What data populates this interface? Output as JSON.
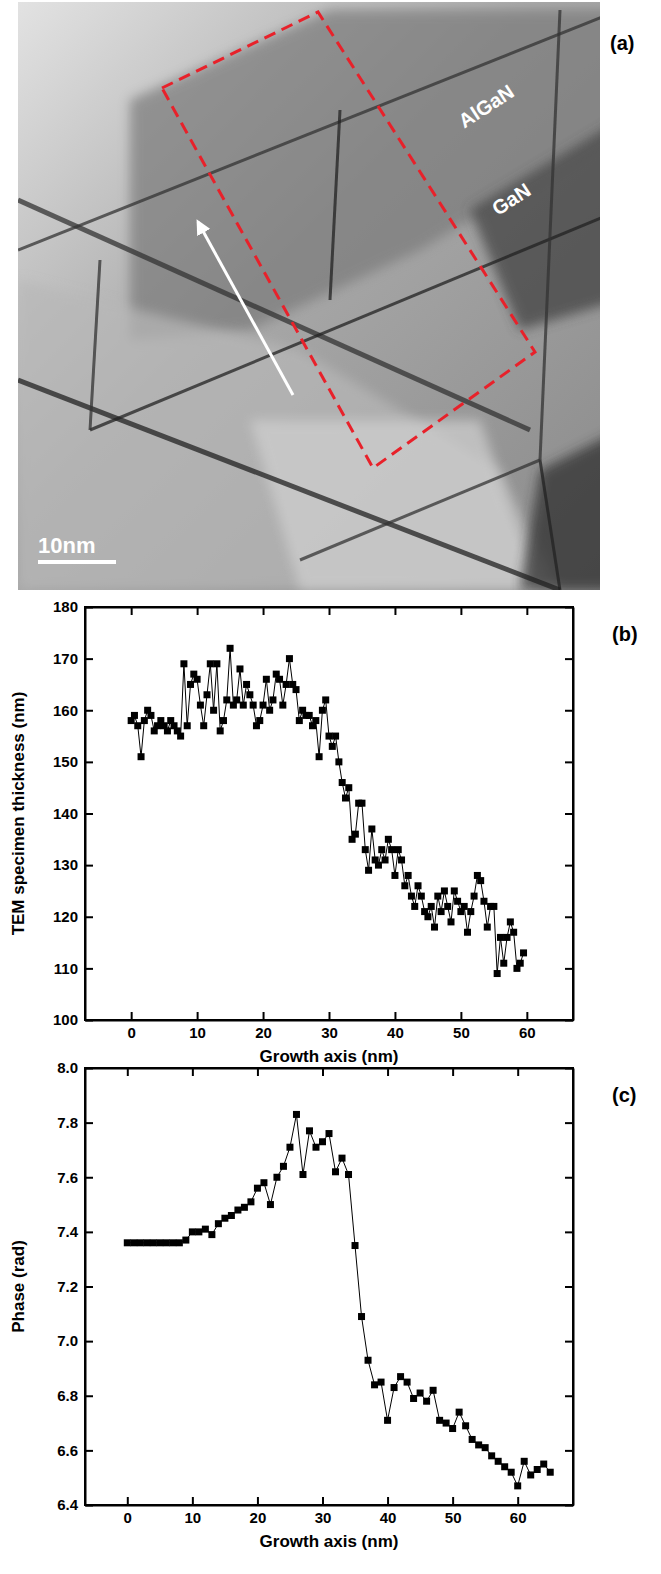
{
  "image": {
    "label": "(a)",
    "labels": [
      "AlGaN",
      "GaN"
    ],
    "scale_bar": "10nm"
  },
  "chart_data": [
    {
      "type": "line",
      "marker": "square",
      "line_style": "solid",
      "color": "#000000",
      "annotations": [
        "(b)"
      ],
      "x_label": "Growth axis (nm)",
      "y_label": "TEM specimen thickness (nm)",
      "xlim": [
        -7,
        67
      ],
      "ylim": [
        100,
        180
      ],
      "xticks": [
        0,
        10,
        20,
        30,
        40,
        50,
        60
      ],
      "yticks": [
        100,
        110,
        120,
        130,
        140,
        150,
        160,
        170,
        180
      ],
      "x": [
        0,
        0.5,
        1,
        1.5,
        2,
        2.5,
        3,
        3.5,
        4,
        4.5,
        5,
        5.5,
        6,
        6.5,
        7,
        7.5,
        8,
        8.5,
        9,
        9.5,
        10,
        10.5,
        11,
        11.5,
        12,
        12.5,
        13,
        13.5,
        14,
        14.5,
        15,
        15.5,
        16,
        16.5,
        17,
        17.5,
        18,
        18.5,
        19,
        19.5,
        20,
        20.5,
        21,
        21.5,
        22,
        22.5,
        23,
        23.5,
        24,
        24.5,
        25,
        25.5,
        26,
        26.5,
        27,
        27.5,
        28,
        28.5,
        29,
        29.5,
        30,
        30.5,
        31,
        31.5,
        32,
        32.5,
        33,
        33.5,
        34,
        34.5,
        35,
        35.5,
        36,
        36.5,
        37,
        37.5,
        38,
        38.5,
        39,
        39.5,
        40,
        40.5,
        41,
        41.5,
        42,
        42.5,
        43,
        43.5,
        44,
        44.5,
        45,
        45.5,
        46,
        46.5,
        47,
        47.5,
        48,
        48.5,
        49,
        49.5,
        50,
        50.5,
        51,
        51.5,
        52,
        52.5,
        53,
        53.5,
        54,
        54.5,
        55,
        55.5,
        56,
        56.5,
        57,
        57.5,
        58,
        58.5,
        59,
        59.5
      ],
      "values": [
        158,
        159,
        157,
        151,
        158,
        160,
        159,
        156,
        157,
        158,
        157,
        156,
        158,
        157,
        156,
        155,
        169,
        157,
        165,
        167,
        166,
        161,
        157,
        163,
        169,
        160,
        169,
        156,
        158,
        162,
        172,
        161,
        162,
        168,
        161,
        165,
        163,
        161,
        157,
        158,
        161,
        166,
        160,
        162,
        167,
        166,
        161,
        165,
        170,
        165,
        164,
        158,
        160,
        159,
        159,
        157,
        158,
        151,
        160,
        162,
        155,
        153,
        155,
        150,
        146,
        143,
        145,
        135,
        136,
        142,
        142,
        133,
        129,
        137,
        131,
        130,
        133,
        131,
        135,
        133,
        128,
        133,
        131,
        126,
        128,
        124,
        122,
        126,
        124,
        121,
        120,
        122,
        118,
        124,
        121,
        125,
        122,
        119,
        125,
        123,
        121,
        122,
        117,
        121,
        124,
        128,
        127,
        123,
        118,
        122,
        122,
        109,
        116,
        111,
        116,
        119,
        117,
        110,
        111,
        113
      ]
    },
    {
      "type": "line",
      "marker": "square",
      "line_style": "solid",
      "color": "#000000",
      "annotations": [
        "(c)"
      ],
      "x_label": "Growth axis (nm)",
      "y_label": "Phase (rad)",
      "xlim": [
        -6.5,
        68.5
      ],
      "ylim": [
        6.4,
        8.0
      ],
      "xticks": [
        0,
        10,
        20,
        30,
        40,
        50,
        60
      ],
      "yticks": [
        6.4,
        6.6,
        6.8,
        {
          "value": 7,
          "label": "7.0"
        },
        7.2,
        7.4,
        7.6,
        7.8,
        {
          "value": 8,
          "label": "8.0"
        }
      ],
      "x": [
        0,
        1,
        2,
        3,
        4,
        5,
        6,
        7,
        8,
        9,
        10,
        11,
        12,
        13,
        14,
        15,
        16,
        17,
        18,
        19,
        20,
        21,
        22,
        23,
        24,
        25,
        26,
        27,
        28,
        29,
        30,
        31,
        32,
        33,
        34,
        35,
        36,
        37,
        38,
        39,
        40,
        41,
        42,
        43,
        44,
        45,
        46,
        47,
        48,
        49,
        50,
        51,
        52,
        53,
        54,
        55,
        56,
        57,
        58,
        59,
        60,
        61,
        62,
        63,
        64,
        65
      ],
      "values": [
        7.36,
        7.36,
        7.36,
        7.36,
        7.36,
        7.36,
        7.36,
        7.36,
        7.36,
        7.37,
        7.4,
        7.4,
        7.41,
        7.39,
        7.43,
        7.45,
        7.46,
        7.48,
        7.49,
        7.51,
        7.56,
        7.58,
        7.5,
        7.6,
        7.64,
        7.71,
        7.83,
        7.61,
        7.77,
        7.71,
        7.73,
        7.76,
        7.62,
        7.67,
        7.61,
        7.35,
        7.09,
        6.93,
        6.84,
        6.85,
        6.71,
        6.83,
        6.87,
        6.85,
        6.79,
        6.81,
        6.78,
        6.82,
        6.71,
        6.7,
        6.68,
        6.74,
        6.69,
        6.64,
        6.62,
        6.61,
        6.58,
        6.56,
        6.54,
        6.52,
        6.47,
        6.56,
        6.51,
        6.53,
        6.55,
        6.52
      ]
    }
  ]
}
